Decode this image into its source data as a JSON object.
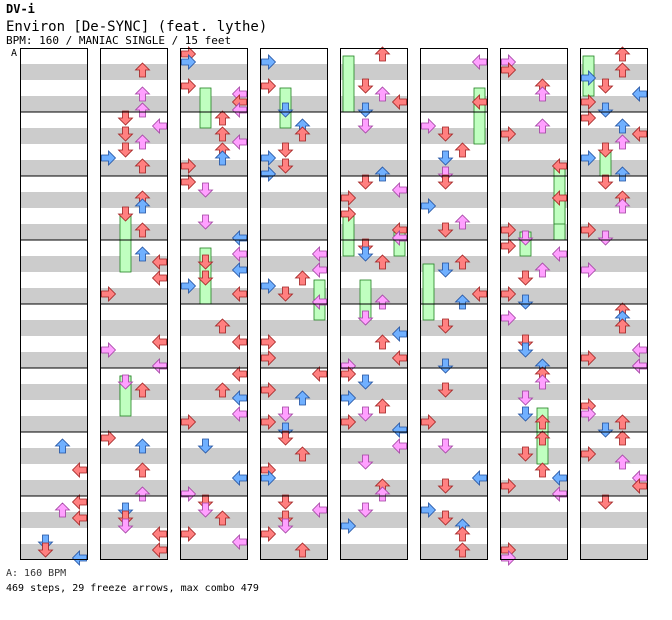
{
  "header": {
    "brand": "DV-i",
    "song_title": "Environ [De-SYNC] (feat. lythe)",
    "chart_info": "BPM: 160 / MANIAC SINGLE / 15 feet"
  },
  "chart": {
    "bpm_marker_label": "A",
    "lane_count": 4,
    "column_count": 8,
    "measures_per_column": 8,
    "note_colors": {
      "red": "#ff8080",
      "pink": "#ffa0ff",
      "blue": "#70b0ff",
      "freeze": "#c0ffc0",
      "stripe_light": "#ffffff",
      "stripe_dark": "#cccccc"
    }
  },
  "footer": {
    "bpm_legend": "A: 160 BPM",
    "stats": "469 steps, 29 freeze arrows, max combo 479"
  },
  "chart_data": {
    "type": "table",
    "title": "Environ [De-SYNC] (feat. lythe)",
    "bpm": 160,
    "difficulty": "MANIAC SINGLE",
    "level_feet": 15,
    "steps": 469,
    "freeze_arrows": 29,
    "max_combo": 479
  }
}
